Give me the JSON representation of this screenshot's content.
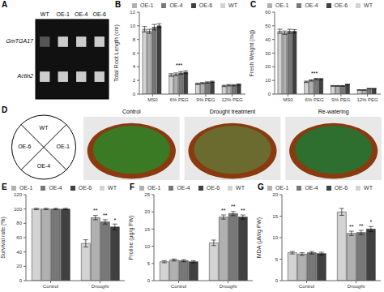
{
  "chart_data": [
    {
      "type": "gel",
      "title": "A",
      "categories": [
        "WT",
        "OE-1",
        "OE-4",
        "OE-6"
      ],
      "annotations": [
        "GmTGA17",
        "Actin2"
      ]
    },
    {
      "type": "bar",
      "title": "B",
      "categories": [
        "MS0",
        "6% PEG",
        "9% PEG",
        "12% PEG"
      ],
      "y_label": "Total Root Length (cm)",
      "ylim": [
        0,
        12
      ],
      "yticks": [
        0,
        2,
        4,
        6,
        8,
        10,
        12
      ],
      "grid": false,
      "legend": "upper right",
      "series": [
        {
          "name": "WT",
          "color": "#d3d3d3",
          "values": [
            9.5,
            2.8,
            1.5,
            1.2
          ],
          "errors": [
            0.4,
            0.2,
            0.1,
            0.1
          ]
        },
        {
          "name": "OE-1",
          "color": "#b0b0b0",
          "values": [
            9.2,
            2.9,
            1.6,
            1.3
          ],
          "errors": [
            0.3,
            0.2,
            0.1,
            0.1
          ]
        },
        {
          "name": "OE-4",
          "color": "#787878",
          "values": [
            9.8,
            3.1,
            1.7,
            1.3
          ],
          "errors": [
            0.4,
            0.2,
            0.1,
            0.1
          ]
        },
        {
          "name": "OE-6",
          "color": "#404040",
          "values": [
            10.0,
            3.2,
            1.8,
            1.4
          ],
          "errors": [
            0.3,
            0.2,
            0.1,
            0.1
          ]
        }
      ],
      "annotations": [
        {
          "text": "***",
          "category": "6% PEG"
        }
      ]
    },
    {
      "type": "bar",
      "title": "C",
      "categories": [
        "MS0",
        "6% PEG",
        "9% PEG",
        "12% PEG"
      ],
      "y_label": "Fresh Weight (mg)",
      "ylim": [
        0,
        60
      ],
      "yticks": [
        0,
        10,
        20,
        30,
        40,
        50,
        60
      ],
      "grid": false,
      "legend": "upper right",
      "series": [
        {
          "name": "WT",
          "color": "#d3d3d3",
          "values": [
            46,
            9,
            6,
            3
          ],
          "errors": [
            1.5,
            0.5,
            0.3,
            0.2
          ]
        },
        {
          "name": "OE-1",
          "color": "#b0b0b0",
          "values": [
            45,
            10,
            6,
            3
          ],
          "errors": [
            1.2,
            0.5,
            0.3,
            0.2
          ]
        },
        {
          "name": "OE-4",
          "color": "#787878",
          "values": [
            46,
            11,
            6,
            4
          ],
          "errors": [
            1.5,
            0.5,
            0.3,
            0.2
          ]
        },
        {
          "name": "OE-6",
          "color": "#404040",
          "values": [
            46,
            11,
            7,
            4
          ],
          "errors": [
            1.3,
            0.5,
            0.3,
            0.2
          ]
        }
      ],
      "annotations": [
        {
          "text": "***",
          "category": "6% PEG"
        }
      ]
    },
    {
      "type": "diagram",
      "title": "D",
      "categories": [
        "WT",
        "OE-1",
        "OE-4",
        "OE-6"
      ]
    },
    {
      "type": "photos",
      "categories": [
        "Control",
        "Drought treatment",
        "Re-watering"
      ],
      "colors": [
        "#3a7a25",
        "#6b6b30",
        "#2e6e2e"
      ]
    },
    {
      "type": "bar",
      "title": "E",
      "categories": [
        "Control",
        "Drought"
      ],
      "y_label": "Survival rate (%)",
      "ylim": [
        0,
        120
      ],
      "yticks": [
        0,
        20,
        40,
        60,
        80,
        100,
        120
      ],
      "grid": false,
      "legend": "upper right",
      "series": [
        {
          "name": "WT",
          "color": "#d3d3d3",
          "values": [
            100,
            52
          ],
          "errors": [
            1,
            5
          ]
        },
        {
          "name": "OE-1",
          "color": "#b0b0b0",
          "values": [
            100,
            88
          ],
          "errors": [
            1,
            3
          ]
        },
        {
          "name": "OE-4",
          "color": "#787878",
          "values": [
            100,
            82
          ],
          "errors": [
            1,
            3
          ]
        },
        {
          "name": "OE-6",
          "color": "#404040",
          "values": [
            100,
            75
          ],
          "errors": [
            1,
            4
          ]
        }
      ],
      "annotations": [
        {
          "text": "**",
          "category": "Drought",
          "series": "OE-1"
        },
        {
          "text": "**",
          "category": "Drought",
          "series": "OE-4"
        },
        {
          "text": "*",
          "category": "Drought",
          "series": "OE-6"
        }
      ]
    },
    {
      "type": "bar",
      "title": "F",
      "categories": [
        "Control",
        "Drought"
      ],
      "y_label": "Proline (μg/g FW)",
      "ylim": [
        0,
        25
      ],
      "yticks": [
        0,
        5,
        10,
        15,
        20,
        25
      ],
      "grid": false,
      "legend": "upper right",
      "series": [
        {
          "name": "WT",
          "color": "#d3d3d3",
          "values": [
            5.5,
            11.0
          ],
          "errors": [
            0.3,
            0.8
          ]
        },
        {
          "name": "OE-1",
          "color": "#b0b0b0",
          "values": [
            6.0,
            18.5
          ],
          "errors": [
            0.3,
            0.6
          ]
        },
        {
          "name": "OE-4",
          "color": "#787878",
          "values": [
            5.8,
            19.5
          ],
          "errors": [
            0.3,
            0.6
          ]
        },
        {
          "name": "OE-6",
          "color": "#404040",
          "values": [
            5.5,
            18.5
          ],
          "errors": [
            0.3,
            0.6
          ]
        }
      ],
      "annotations": [
        {
          "text": "**",
          "category": "Drought",
          "series": "OE-1"
        },
        {
          "text": "**",
          "category": "Drought",
          "series": "OE-4"
        },
        {
          "text": "**",
          "category": "Drought",
          "series": "OE-6"
        }
      ]
    },
    {
      "type": "bar",
      "title": "G",
      "categories": [
        "Control",
        "Drought"
      ],
      "y_label": "MDA (μM/g FW)",
      "ylim": [
        0,
        20
      ],
      "yticks": [
        0,
        5,
        10,
        15,
        20
      ],
      "grid": false,
      "legend": "upper right",
      "series": [
        {
          "name": "WT",
          "color": "#d3d3d3",
          "values": [
            6.5,
            16.0
          ],
          "errors": [
            0.3,
            0.8
          ]
        },
        {
          "name": "OE-1",
          "color": "#b0b0b0",
          "values": [
            6.2,
            11.0
          ],
          "errors": [
            0.3,
            0.5
          ]
        },
        {
          "name": "OE-4",
          "color": "#787878",
          "values": [
            6.5,
            11.2
          ],
          "errors": [
            0.3,
            0.5
          ]
        },
        {
          "name": "OE-6",
          "color": "#404040",
          "values": [
            6.3,
            12.0
          ],
          "errors": [
            0.3,
            0.6
          ]
        }
      ],
      "annotations": [
        {
          "text": "**",
          "category": "Drought",
          "series": "OE-1"
        },
        {
          "text": "**",
          "category": "Drought",
          "series": "OE-4"
        },
        {
          "text": "*",
          "category": "Drought",
          "series": "OE-6"
        }
      ]
    }
  ]
}
